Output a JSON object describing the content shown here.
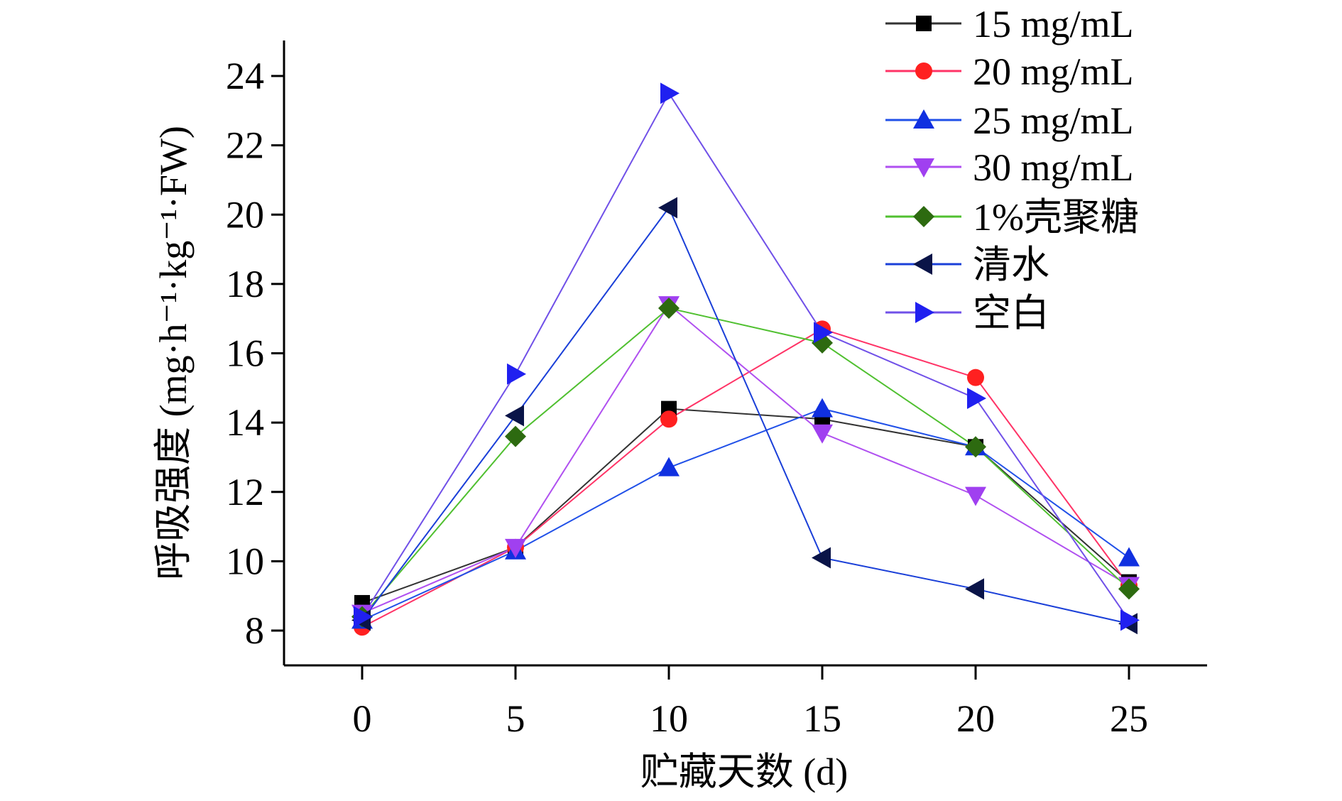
{
  "chart_data": {
    "type": "line",
    "title": "",
    "xlabel": "贮藏天数 (d)",
    "ylabel": "呼吸强度 (mg·h⁻¹·kg⁻¹·FW)",
    "x": [
      0,
      5,
      10,
      15,
      20,
      25
    ],
    "xticks": [
      "0",
      "5",
      "10",
      "15",
      "20",
      "25"
    ],
    "yticks": [
      "8",
      "10",
      "12",
      "14",
      "16",
      "18",
      "20",
      "22",
      "24"
    ],
    "ytick_values": [
      8,
      10,
      12,
      14,
      16,
      18,
      20,
      22,
      24
    ],
    "xlim": [
      -2.5,
      27.5
    ],
    "ylim": [
      7,
      25.2
    ],
    "grid": false,
    "legend_position": "top-right",
    "series": [
      {
        "name": "15 mg/mL",
        "marker": "square",
        "color": "#000000",
        "line_color": "#333333",
        "values": [
          8.8,
          10.4,
          14.4,
          14.1,
          13.3,
          9.4
        ]
      },
      {
        "name": "20 mg/mL",
        "marker": "circle",
        "color": "#ff2020",
        "line_color": "#ff3366",
        "values": [
          8.1,
          10.4,
          14.1,
          16.7,
          15.3,
          9.3
        ]
      },
      {
        "name": "25 mg/mL",
        "marker": "triangle-up",
        "color": "#1030e0",
        "line_color": "#2050e8",
        "values": [
          8.3,
          10.3,
          12.7,
          14.4,
          13.3,
          10.1
        ]
      },
      {
        "name": "30 mg/mL",
        "marker": "triangle-down",
        "color": "#a040f0",
        "line_color": "#b050f0",
        "values": [
          8.5,
          10.4,
          17.4,
          13.7,
          11.9,
          9.3
        ]
      },
      {
        "name": "1%壳聚糖",
        "marker": "diamond",
        "color": "#2d6a10",
        "line_color": "#50c030",
        "values": [
          8.4,
          13.6,
          17.3,
          16.3,
          13.3,
          9.2
        ]
      },
      {
        "name": "清水",
        "marker": "triangle-left",
        "color": "#0a1448",
        "line_color": "#1a3fd8",
        "values": [
          8.3,
          14.2,
          20.2,
          10.1,
          9.2,
          8.2
        ]
      },
      {
        "name": "空白",
        "marker": "triangle-right",
        "color": "#2020f0",
        "line_color": "#7050e8",
        "values": [
          8.4,
          15.4,
          23.5,
          16.6,
          14.7,
          8.3
        ]
      }
    ]
  }
}
